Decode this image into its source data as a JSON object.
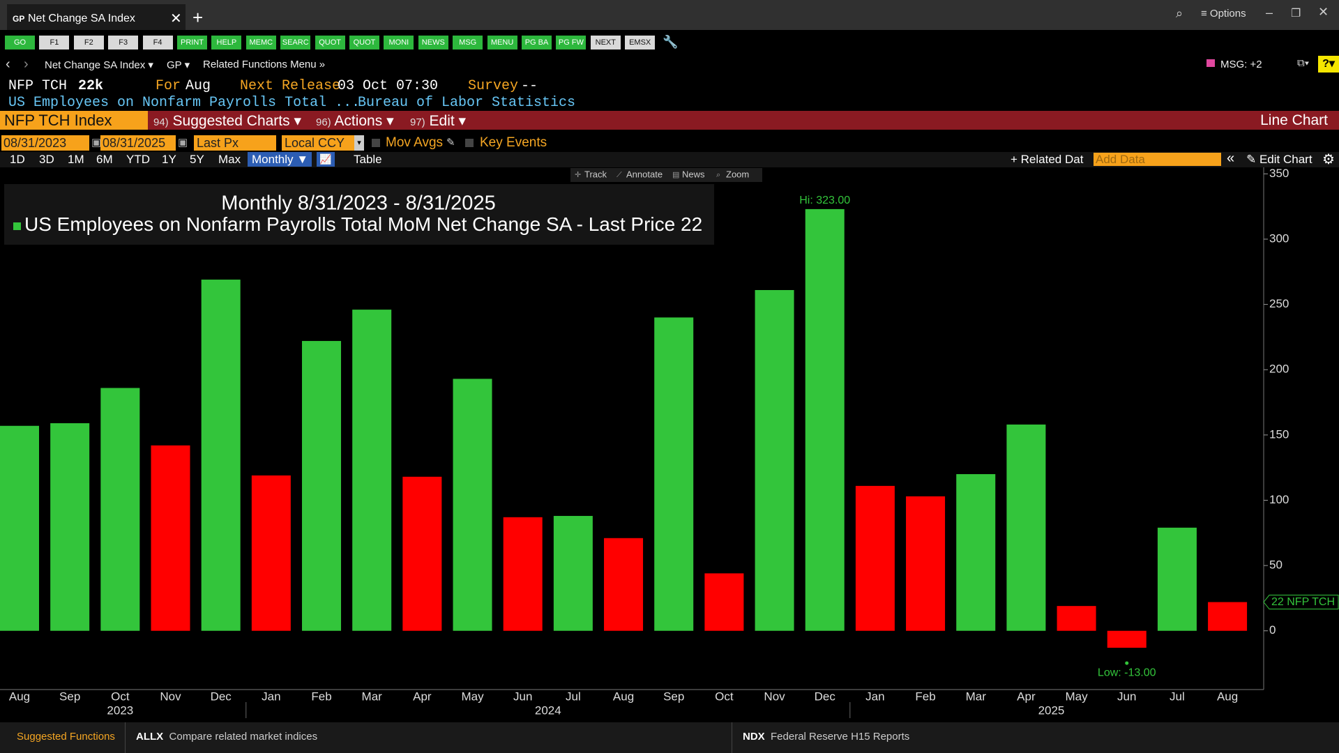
{
  "tab": {
    "logo": "GP",
    "title": "Net Change SA Index",
    "options": "Options"
  },
  "function_keys": [
    {
      "label": "GO",
      "color": "#2db83d"
    },
    {
      "label": "F1",
      "color": "#d9d9d9"
    },
    {
      "label": "F2",
      "color": "#d9d9d9"
    },
    {
      "label": "F3",
      "color": "#d9d9d9"
    },
    {
      "label": "F4",
      "color": "#d9d9d9"
    },
    {
      "label": "PRINT",
      "color": "#2db83d"
    },
    {
      "label": "HELP",
      "color": "#2db83d"
    },
    {
      "label": "MEMC",
      "color": "#2db83d"
    },
    {
      "label": "SEARC",
      "color": "#2db83d"
    },
    {
      "label": "QUOT",
      "color": "#2db83d"
    },
    {
      "label": "QUOT",
      "color": "#2db83d"
    },
    {
      "label": "MONI",
      "color": "#2db83d"
    },
    {
      "label": "NEWS",
      "color": "#2db83d"
    },
    {
      "label": "MSG",
      "color": "#2db83d"
    },
    {
      "label": "MENU",
      "color": "#2db83d"
    },
    {
      "label": "PG BA",
      "color": "#2db83d"
    },
    {
      "label": "PG FW",
      "color": "#2db83d"
    },
    {
      "label": "NEXT",
      "color": "#d9d9d9"
    },
    {
      "label": "EMSX",
      "color": "#d9d9d9"
    }
  ],
  "nav": {
    "security": "Net Change SA Index",
    "function": "GP",
    "related": "Related Functions Menu",
    "msg": "MSG: +2"
  },
  "header": {
    "ticker": "NFP TCH",
    "last": "22k",
    "for_label": "For",
    "for_value": "Aug",
    "next_release_label": "Next Release",
    "next_release": "03 Oct 07:30",
    "survey_label": "Survey",
    "survey": "--",
    "name": "US Employees on Nonfarm Payrolls Total ...",
    "source": "Bureau of Labor Statistics"
  },
  "band": {
    "security": "NFP TCH Index",
    "menus": [
      {
        "key": "94)",
        "label": "Suggested Charts"
      },
      {
        "key": "96)",
        "label": "Actions"
      },
      {
        "key": "97)",
        "label": "Edit"
      }
    ],
    "chart_type": "Line Chart"
  },
  "controls": {
    "start": "08/31/2023",
    "end": "08/31/2025",
    "field": "Last Px",
    "currency": "Local CCY",
    "mov_avgs": "Mov Avgs",
    "key_events": "Key Events"
  },
  "periods": [
    "1D",
    "3D",
    "1M",
    "6M",
    "YTD",
    "1Y",
    "5Y",
    "Max"
  ],
  "frequency": "Monthly",
  "table": "Table",
  "related": "Related Dat",
  "add_data": "Add Data",
  "edit_chart": "Edit Chart",
  "chart_tools": [
    "Track",
    "Annotate",
    "News",
    "Zoom"
  ],
  "chart_data": {
    "type": "bar",
    "title": "Monthly 8/31/2023 - 8/31/2025",
    "years": [
      {
        "label": "2023",
        "months": [
          "Aug",
          "Sep",
          "Oct",
          "Nov",
          "Dec"
        ]
      },
      {
        "label": "2024",
        "months": [
          "Jan",
          "Feb",
          "Mar",
          "Apr",
          "May",
          "Jun",
          "Jul",
          "Aug",
          "Sep",
          "Oct",
          "Nov",
          "Dec"
        ]
      },
      {
        "label": "2025",
        "months": [
          "Jan",
          "Feb",
          "Mar",
          "Apr",
          "May",
          "Jun",
          "Jul",
          "Aug"
        ]
      }
    ],
    "series": [
      {
        "name": "US Employees on Nonfarm Payrolls Total MoM Net Change SA - Last Price",
        "values": [
          157,
          159,
          186,
          142,
          269,
          119,
          222,
          246,
          118,
          193,
          87,
          88,
          71,
          240,
          44,
          261,
          323,
          111,
          103,
          120,
          158,
          19,
          -13,
          79,
          22
        ],
        "up_color": "#33c53b",
        "down_color": "#ff0000"
      }
    ],
    "last_price": 22,
    "last_price_tag": "22 NFP TCH",
    "hi_label": "Hi: 323.00",
    "low_label": "Low: -13.00",
    "ylim": [
      -45,
      355
    ],
    "yticks": [
      0,
      50,
      100,
      150,
      200,
      250,
      300,
      350
    ]
  },
  "footer": {
    "suggested": "Suggested Functions",
    "items": [
      {
        "code": "ALLX",
        "label": "Compare related market indices"
      },
      {
        "code": "NDX",
        "label": "Federal Reserve H15 Reports"
      }
    ]
  }
}
